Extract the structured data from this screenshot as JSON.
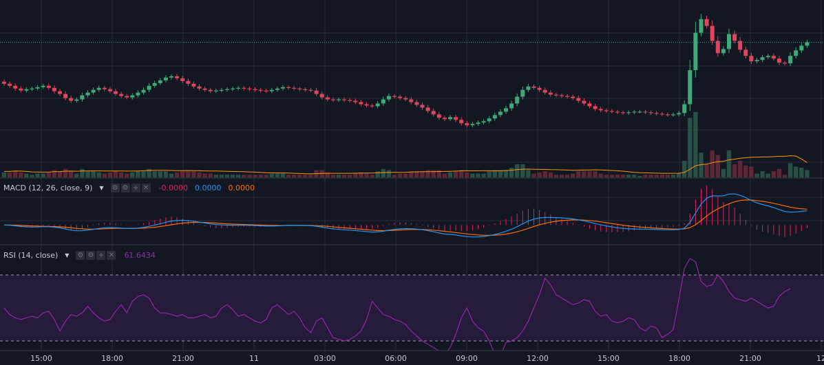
{
  "colors": {
    "background": "#131722",
    "grid": "#2a2e39",
    "up": "#26a69a",
    "up_body": "#3fa97a",
    "down": "#ef5350",
    "down_body": "#e0455b",
    "volume_ma": "#ff9800",
    "macd_line": "#2196f3",
    "signal_line": "#ff6d00",
    "histogram": "#e91e63",
    "rsi_line": "#9c27b0",
    "rsi_band": "#2a1c3e",
    "last_price_line": "#26a69a",
    "axis_text": "#c8cbd3"
  },
  "macd_legend": {
    "label": "MACD (12, 26, close, 9)",
    "histogram_value": "-0.0000",
    "macd_value": "0.0000",
    "signal_value": "0.0000"
  },
  "rsi_legend": {
    "label": "RSI (14, close)",
    "value": "61.6434"
  },
  "legend_buttons": [
    "⚙",
    "⚙",
    "+",
    "✕"
  ],
  "chart_data": {
    "type": "candlestick",
    "x_labels": [
      "15:00",
      "18:00",
      "21:00",
      "11",
      "03:00",
      "06:00",
      "09:00",
      "12:00",
      "15:00",
      "18:00",
      "21:00",
      "12"
    ],
    "interval_minutes": 15,
    "candles_close": [
      0.555,
      0.552,
      0.548,
      0.545,
      0.547,
      0.548,
      0.55,
      0.552,
      0.549,
      0.544,
      0.54,
      0.534,
      0.53,
      0.532,
      0.538,
      0.542,
      0.546,
      0.549,
      0.547,
      0.544,
      0.54,
      0.537,
      0.535,
      0.538,
      0.542,
      0.546,
      0.552,
      0.556,
      0.56,
      0.564,
      0.566,
      0.563,
      0.559,
      0.555,
      0.551,
      0.548,
      0.546,
      0.544,
      0.545,
      0.546,
      0.547,
      0.548,
      0.549,
      0.548,
      0.547,
      0.546,
      0.545,
      0.544,
      0.546,
      0.548,
      0.55,
      0.549,
      0.548,
      0.547,
      0.546,
      0.545,
      0.54,
      0.535,
      0.532,
      0.531,
      0.532,
      0.531,
      0.53,
      0.528,
      0.525,
      0.523,
      0.522,
      0.526,
      0.532,
      0.537,
      0.536,
      0.534,
      0.532,
      0.528,
      0.524,
      0.52,
      0.515,
      0.51,
      0.505,
      0.503,
      0.506,
      0.502,
      0.497,
      0.494,
      0.496,
      0.498,
      0.5,
      0.504,
      0.509,
      0.514,
      0.519,
      0.526,
      0.536,
      0.546,
      0.551,
      0.549,
      0.546,
      0.542,
      0.539,
      0.538,
      0.537,
      0.536,
      0.534,
      0.53,
      0.526,
      0.522,
      0.518,
      0.516,
      0.515,
      0.514,
      0.513,
      0.512,
      0.513,
      0.514,
      0.514,
      0.513,
      0.512,
      0.511,
      0.51,
      0.509,
      0.51,
      0.512,
      0.525,
      0.575,
      0.63,
      0.65,
      0.64,
      0.618,
      0.6,
      0.606,
      0.628,
      0.618,
      0.605,
      0.596,
      0.588,
      0.59,
      0.594,
      0.596,
      0.592,
      0.586,
      0.585,
      0.596,
      0.604,
      0.611,
      0.616
    ],
    "last_price": 0.616,
    "macd": {
      "macd_line_range": [
        -0.012,
        0.036
      ],
      "signal_line_range": [
        -0.011,
        0.033
      ]
    },
    "rsi": {
      "period": 14,
      "last": 61.6434,
      "bands": [
        70,
        30
      ],
      "values": [
        50,
        46,
        44,
        43,
        44,
        45,
        44,
        47,
        48,
        43,
        36,
        42,
        46,
        45,
        47,
        51,
        47,
        44,
        42,
        43,
        48,
        52,
        47,
        54,
        57,
        58,
        56,
        50,
        47,
        47,
        46,
        45,
        46,
        44,
        44,
        45,
        46,
        44,
        45,
        50,
        52,
        49,
        45,
        46,
        44,
        42,
        41,
        43,
        50,
        52,
        49,
        46,
        48,
        44,
        38,
        35,
        42,
        44,
        38,
        32,
        31,
        30,
        31,
        33,
        36,
        43,
        54,
        50,
        46,
        45,
        43,
        42,
        40,
        36,
        33,
        30,
        28,
        26,
        24,
        22,
        26,
        34,
        44,
        50,
        42,
        38,
        36,
        30,
        22,
        21,
        29,
        30,
        32,
        36,
        42,
        50,
        58,
        68,
        64,
        58,
        56,
        54,
        52,
        53,
        55,
        54,
        48,
        45,
        46,
        42,
        41,
        42,
        44,
        43,
        38,
        36,
        39,
        38,
        32,
        34,
        37,
        55,
        74,
        80,
        78,
        66,
        63,
        64,
        70,
        66,
        60,
        56,
        55,
        54,
        56,
        54,
        52,
        50,
        51,
        57,
        60,
        61.6
      ]
    }
  }
}
